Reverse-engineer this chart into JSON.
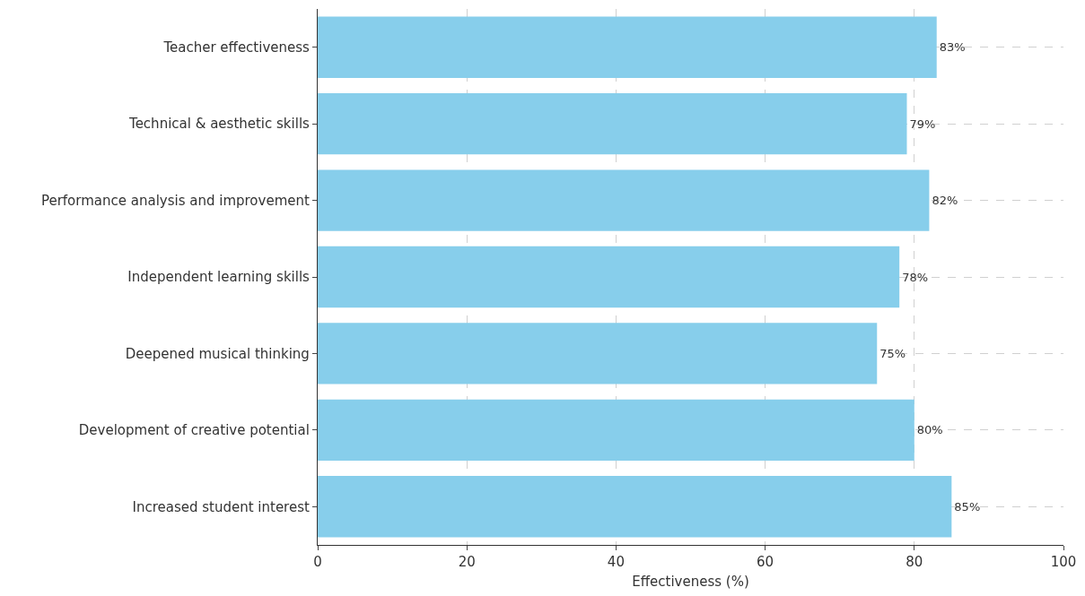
{
  "chart_data": {
    "type": "bar",
    "orientation": "horizontal",
    "xlabel": "Effectiveness (%)",
    "categories": [
      "Teacher effectiveness",
      "Technical & aesthetic skills",
      "Performance analysis and improvement",
      "Independent learning skills",
      "Deepened musical thinking",
      "Development of creative potential",
      "Increased student interest"
    ],
    "values": [
      83,
      79,
      82,
      78,
      75,
      80,
      85
    ],
    "value_labels": [
      "83%",
      "79%",
      "82%",
      "78%",
      "75%",
      "80%",
      "85%"
    ],
    "color": "#87ceeb",
    "xlim": [
      0,
      100
    ],
    "xticks": [
      0,
      20,
      40,
      60,
      80,
      100
    ],
    "grid": true,
    "legend": false
  }
}
